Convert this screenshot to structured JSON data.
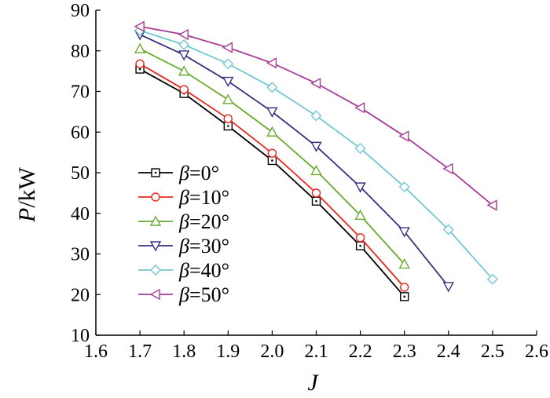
{
  "chart_data": {
    "type": "line",
    "xlabel": "J",
    "ylabel_var": "P",
    "ylabel_unit": "/kW",
    "xlim": [
      1.6,
      2.6
    ],
    "ylim": [
      10,
      90
    ],
    "xticks": [
      "1.6",
      "1.7",
      "1.8",
      "1.9",
      "2.0",
      "2.1",
      "2.2",
      "2.3",
      "2.4",
      "2.5",
      "2.6"
    ],
    "yticks": [
      "10",
      "20",
      "30",
      "40",
      "50",
      "60",
      "70",
      "80",
      "90"
    ],
    "series": [
      {
        "name_var": "β",
        "name_value": "=0°",
        "color": "#000000",
        "marker": "square-dot",
        "x": [
          1.7,
          1.8,
          1.9,
          2.0,
          2.1,
          2.2,
          2.3
        ],
        "y": [
          75.5,
          69.5,
          61.5,
          53.0,
          43.0,
          32.0,
          19.5
        ]
      },
      {
        "name_var": "β",
        "name_value": "=10°",
        "color": "#e8281e",
        "marker": "circle",
        "x": [
          1.7,
          1.8,
          1.9,
          2.0,
          2.1,
          2.2,
          2.3
        ],
        "y": [
          76.8,
          70.5,
          63.3,
          54.8,
          45.0,
          34.0,
          21.8
        ]
      },
      {
        "name_var": "β",
        "name_value": "=20°",
        "color": "#6aaa2d",
        "marker": "triangle-up",
        "x": [
          1.7,
          1.8,
          1.9,
          2.0,
          2.1,
          2.2,
          2.3
        ],
        "y": [
          80.5,
          75.0,
          68.0,
          60.0,
          50.5,
          39.5,
          27.5
        ]
      },
      {
        "name_var": "β",
        "name_value": "=30°",
        "color": "#363080",
        "marker": "triangle-down",
        "x": [
          1.7,
          1.8,
          1.9,
          2.0,
          2.1,
          2.2,
          2.3,
          2.4
        ],
        "y": [
          84.0,
          79.0,
          72.5,
          65.0,
          56.5,
          46.5,
          35.5,
          22.0
        ]
      },
      {
        "name_var": "β",
        "name_value": "=40°",
        "color": "#72c7d3",
        "marker": "diamond",
        "x": [
          1.7,
          1.8,
          1.9,
          2.0,
          2.1,
          2.2,
          2.3,
          2.4,
          2.5
        ],
        "y": [
          85.0,
          81.5,
          76.8,
          71.0,
          64.0,
          56.0,
          46.5,
          36.0,
          23.8
        ]
      },
      {
        "name_var": "β",
        "name_value": "=50°",
        "color": "#a63c96",
        "marker": "triangle-left",
        "x": [
          1.7,
          1.8,
          1.9,
          2.0,
          2.1,
          2.2,
          2.3,
          2.4,
          2.5
        ],
        "y": [
          86.0,
          84.0,
          80.8,
          77.0,
          72.0,
          66.0,
          59.0,
          51.0,
          42.0
        ]
      }
    ]
  }
}
